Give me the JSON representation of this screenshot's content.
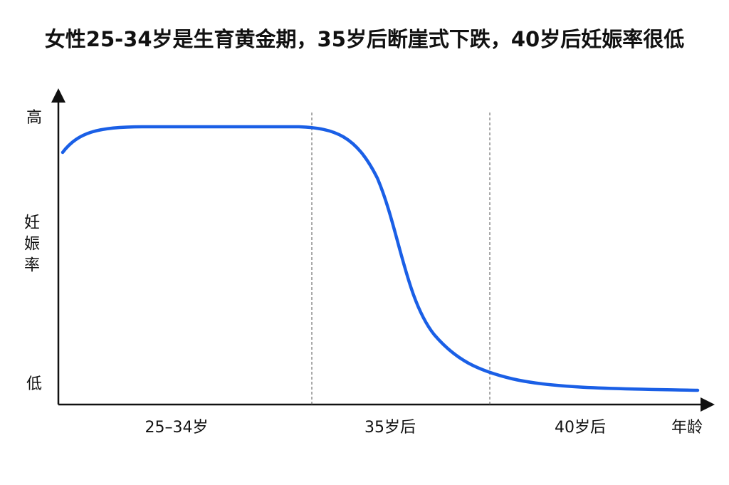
{
  "title": "女性25-34岁是生育黄金期，35岁后断崖式下跌，40岁后妊娠率很低",
  "y_axis": {
    "label": "妊娠率",
    "top_label": "高",
    "bottom_label": "低"
  },
  "x_axis": {
    "label": "年龄",
    "stages": [
      "25–34岁",
      "35岁后",
      "40岁后"
    ]
  }
}
